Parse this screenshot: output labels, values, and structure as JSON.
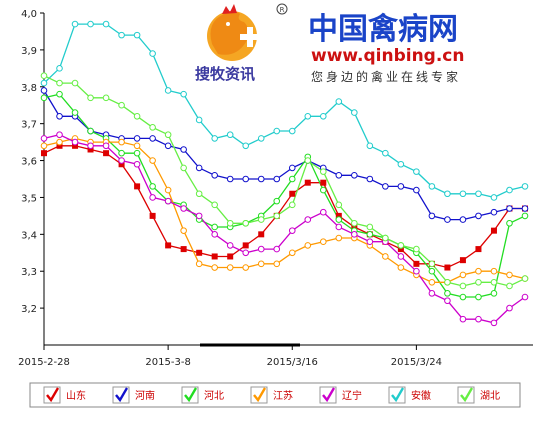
{
  "branding": {
    "site_name": "中国禽病网",
    "site_url": "www.qinbing.cn",
    "tagline": "您身边的禽业在线专家",
    "brand": "搜牧资讯",
    "registered_mark": "R"
  },
  "chart_data": {
    "type": "line",
    "title": "",
    "xlabel": "",
    "ylabel": "",
    "ylim": [
      3.1,
      4.0
    ],
    "yticks": [
      "3,2",
      "3,3",
      "3,4",
      "3,5",
      "3,6",
      "3,7",
      "3,8",
      "3,9",
      "4,0"
    ],
    "ytick_values": [
      3.2,
      3.3,
      3.4,
      3.5,
      3.6,
      3.7,
      3.8,
      3.9,
      4.0
    ],
    "xticks": [
      {
        "label": "2015-2-28",
        "index": 0
      },
      {
        "label": "2015-3-8",
        "index": 8
      },
      {
        "label": "2015/3/16",
        "index": 16
      },
      {
        "label": "2015/3/24",
        "index": 24
      }
    ],
    "grid": false,
    "legend_position": "bottom",
    "series": [
      {
        "name": "山东",
        "color": "#dd0000",
        "marker": "square",
        "values": [
          3.62,
          3.64,
          3.64,
          3.63,
          3.62,
          3.59,
          3.53,
          3.45,
          3.37,
          3.36,
          3.35,
          3.34,
          3.34,
          3.37,
          3.4,
          3.45,
          3.51,
          3.54,
          3.54,
          3.45,
          3.42,
          3.4,
          3.38,
          3.36,
          3.32,
          3.32,
          3.31,
          3.33,
          3.36,
          3.41,
          3.47,
          3.47
        ]
      },
      {
        "name": "河南",
        "color": "#1111cc",
        "marker": "circle",
        "values": [
          3.79,
          3.72,
          3.72,
          3.68,
          3.67,
          3.66,
          3.66,
          3.66,
          3.64,
          3.63,
          3.58,
          3.56,
          3.55,
          3.55,
          3.55,
          3.55,
          3.58,
          3.6,
          3.58,
          3.56,
          3.56,
          3.55,
          3.53,
          3.53,
          3.52,
          3.45,
          3.44,
          3.44,
          3.45,
          3.46,
          3.47,
          3.47
        ]
      },
      {
        "name": "河北",
        "color": "#22dd22",
        "marker": "circle",
        "values": [
          3.77,
          3.78,
          3.73,
          3.68,
          3.66,
          3.62,
          3.62,
          3.53,
          3.49,
          3.48,
          3.44,
          3.42,
          3.42,
          3.43,
          3.45,
          3.49,
          3.55,
          3.61,
          3.52,
          3.44,
          3.41,
          3.4,
          3.39,
          3.37,
          3.35,
          3.3,
          3.24,
          3.23,
          3.23,
          3.24,
          3.43,
          3.45
        ]
      },
      {
        "name": "江苏",
        "color": "#ff9900",
        "marker": "circle",
        "values": [
          3.64,
          3.65,
          3.66,
          3.65,
          3.65,
          3.65,
          3.64,
          3.6,
          3.52,
          3.41,
          3.32,
          3.31,
          3.31,
          3.31,
          3.32,
          3.32,
          3.35,
          3.37,
          3.38,
          3.39,
          3.39,
          3.37,
          3.34,
          3.31,
          3.29,
          3.27,
          3.27,
          3.29,
          3.3,
          3.3,
          3.29,
          3.28
        ]
      },
      {
        "name": "辽宁",
        "color": "#cc00cc",
        "marker": "circle",
        "values": [
          3.66,
          3.67,
          3.65,
          3.64,
          3.64,
          3.6,
          3.59,
          3.5,
          3.49,
          3.47,
          3.45,
          3.4,
          3.37,
          3.35,
          3.36,
          3.36,
          3.41,
          3.44,
          3.46,
          3.42,
          3.4,
          3.38,
          3.38,
          3.34,
          3.3,
          3.24,
          3.22,
          3.17,
          3.17,
          3.16,
          3.2,
          3.23
        ]
      },
      {
        "name": "安徽",
        "color": "#22cccc",
        "marker": "circle",
        "values": [
          3.81,
          3.85,
          3.97,
          3.97,
          3.97,
          3.94,
          3.94,
          3.89,
          3.79,
          3.78,
          3.71,
          3.66,
          3.67,
          3.64,
          3.66,
          3.68,
          3.68,
          3.72,
          3.72,
          3.76,
          3.73,
          3.64,
          3.62,
          3.59,
          3.57,
          3.53,
          3.51,
          3.51,
          3.51,
          3.5,
          3.52,
          3.53
        ]
      },
      {
        "name": "湖北",
        "color": "#66ee44",
        "marker": "circle",
        "values": [
          3.83,
          3.81,
          3.81,
          3.77,
          3.77,
          3.75,
          3.72,
          3.69,
          3.67,
          3.58,
          3.51,
          3.48,
          3.43,
          3.43,
          3.44,
          3.45,
          3.48,
          3.6,
          3.57,
          3.48,
          3.43,
          3.42,
          3.39,
          3.37,
          3.36,
          3.32,
          3.27,
          3.26,
          3.27,
          3.27,
          3.26,
          3.28
        ]
      }
    ]
  }
}
